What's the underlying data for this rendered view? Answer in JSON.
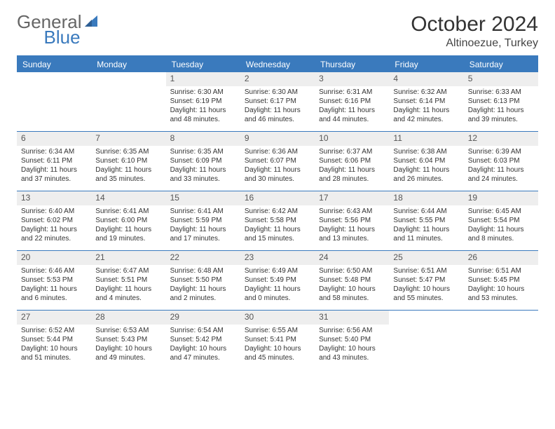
{
  "logo": {
    "text1": "General",
    "text2": "Blue"
  },
  "title": "October 2024",
  "subtitle": "Altinoezue, Turkey",
  "colors": {
    "accent": "#3a7abd",
    "daynum_bg": "#eeeeee",
    "text": "#333333",
    "background": "#ffffff"
  },
  "weekdays": [
    "Sunday",
    "Monday",
    "Tuesday",
    "Wednesday",
    "Thursday",
    "Friday",
    "Saturday"
  ],
  "weeks": [
    [
      {
        "n": "",
        "sr": "",
        "ss": "",
        "dl1": "",
        "dl2": ""
      },
      {
        "n": "",
        "sr": "",
        "ss": "",
        "dl1": "",
        "dl2": ""
      },
      {
        "n": "1",
        "sr": "Sunrise: 6:30 AM",
        "ss": "Sunset: 6:19 PM",
        "dl1": "Daylight: 11 hours",
        "dl2": "and 48 minutes."
      },
      {
        "n": "2",
        "sr": "Sunrise: 6:30 AM",
        "ss": "Sunset: 6:17 PM",
        "dl1": "Daylight: 11 hours",
        "dl2": "and 46 minutes."
      },
      {
        "n": "3",
        "sr": "Sunrise: 6:31 AM",
        "ss": "Sunset: 6:16 PM",
        "dl1": "Daylight: 11 hours",
        "dl2": "and 44 minutes."
      },
      {
        "n": "4",
        "sr": "Sunrise: 6:32 AM",
        "ss": "Sunset: 6:14 PM",
        "dl1": "Daylight: 11 hours",
        "dl2": "and 42 minutes."
      },
      {
        "n": "5",
        "sr": "Sunrise: 6:33 AM",
        "ss": "Sunset: 6:13 PM",
        "dl1": "Daylight: 11 hours",
        "dl2": "and 39 minutes."
      }
    ],
    [
      {
        "n": "6",
        "sr": "Sunrise: 6:34 AM",
        "ss": "Sunset: 6:11 PM",
        "dl1": "Daylight: 11 hours",
        "dl2": "and 37 minutes."
      },
      {
        "n": "7",
        "sr": "Sunrise: 6:35 AM",
        "ss": "Sunset: 6:10 PM",
        "dl1": "Daylight: 11 hours",
        "dl2": "and 35 minutes."
      },
      {
        "n": "8",
        "sr": "Sunrise: 6:35 AM",
        "ss": "Sunset: 6:09 PM",
        "dl1": "Daylight: 11 hours",
        "dl2": "and 33 minutes."
      },
      {
        "n": "9",
        "sr": "Sunrise: 6:36 AM",
        "ss": "Sunset: 6:07 PM",
        "dl1": "Daylight: 11 hours",
        "dl2": "and 30 minutes."
      },
      {
        "n": "10",
        "sr": "Sunrise: 6:37 AM",
        "ss": "Sunset: 6:06 PM",
        "dl1": "Daylight: 11 hours",
        "dl2": "and 28 minutes."
      },
      {
        "n": "11",
        "sr": "Sunrise: 6:38 AM",
        "ss": "Sunset: 6:04 PM",
        "dl1": "Daylight: 11 hours",
        "dl2": "and 26 minutes."
      },
      {
        "n": "12",
        "sr": "Sunrise: 6:39 AM",
        "ss": "Sunset: 6:03 PM",
        "dl1": "Daylight: 11 hours",
        "dl2": "and 24 minutes."
      }
    ],
    [
      {
        "n": "13",
        "sr": "Sunrise: 6:40 AM",
        "ss": "Sunset: 6:02 PM",
        "dl1": "Daylight: 11 hours",
        "dl2": "and 22 minutes."
      },
      {
        "n": "14",
        "sr": "Sunrise: 6:41 AM",
        "ss": "Sunset: 6:00 PM",
        "dl1": "Daylight: 11 hours",
        "dl2": "and 19 minutes."
      },
      {
        "n": "15",
        "sr": "Sunrise: 6:41 AM",
        "ss": "Sunset: 5:59 PM",
        "dl1": "Daylight: 11 hours",
        "dl2": "and 17 minutes."
      },
      {
        "n": "16",
        "sr": "Sunrise: 6:42 AM",
        "ss": "Sunset: 5:58 PM",
        "dl1": "Daylight: 11 hours",
        "dl2": "and 15 minutes."
      },
      {
        "n": "17",
        "sr": "Sunrise: 6:43 AM",
        "ss": "Sunset: 5:56 PM",
        "dl1": "Daylight: 11 hours",
        "dl2": "and 13 minutes."
      },
      {
        "n": "18",
        "sr": "Sunrise: 6:44 AM",
        "ss": "Sunset: 5:55 PM",
        "dl1": "Daylight: 11 hours",
        "dl2": "and 11 minutes."
      },
      {
        "n": "19",
        "sr": "Sunrise: 6:45 AM",
        "ss": "Sunset: 5:54 PM",
        "dl1": "Daylight: 11 hours",
        "dl2": "and 8 minutes."
      }
    ],
    [
      {
        "n": "20",
        "sr": "Sunrise: 6:46 AM",
        "ss": "Sunset: 5:53 PM",
        "dl1": "Daylight: 11 hours",
        "dl2": "and 6 minutes."
      },
      {
        "n": "21",
        "sr": "Sunrise: 6:47 AM",
        "ss": "Sunset: 5:51 PM",
        "dl1": "Daylight: 11 hours",
        "dl2": "and 4 minutes."
      },
      {
        "n": "22",
        "sr": "Sunrise: 6:48 AM",
        "ss": "Sunset: 5:50 PM",
        "dl1": "Daylight: 11 hours",
        "dl2": "and 2 minutes."
      },
      {
        "n": "23",
        "sr": "Sunrise: 6:49 AM",
        "ss": "Sunset: 5:49 PM",
        "dl1": "Daylight: 11 hours",
        "dl2": "and 0 minutes."
      },
      {
        "n": "24",
        "sr": "Sunrise: 6:50 AM",
        "ss": "Sunset: 5:48 PM",
        "dl1": "Daylight: 10 hours",
        "dl2": "and 58 minutes."
      },
      {
        "n": "25",
        "sr": "Sunrise: 6:51 AM",
        "ss": "Sunset: 5:47 PM",
        "dl1": "Daylight: 10 hours",
        "dl2": "and 55 minutes."
      },
      {
        "n": "26",
        "sr": "Sunrise: 6:51 AM",
        "ss": "Sunset: 5:45 PM",
        "dl1": "Daylight: 10 hours",
        "dl2": "and 53 minutes."
      }
    ],
    [
      {
        "n": "27",
        "sr": "Sunrise: 6:52 AM",
        "ss": "Sunset: 5:44 PM",
        "dl1": "Daylight: 10 hours",
        "dl2": "and 51 minutes."
      },
      {
        "n": "28",
        "sr": "Sunrise: 6:53 AM",
        "ss": "Sunset: 5:43 PM",
        "dl1": "Daylight: 10 hours",
        "dl2": "and 49 minutes."
      },
      {
        "n": "29",
        "sr": "Sunrise: 6:54 AM",
        "ss": "Sunset: 5:42 PM",
        "dl1": "Daylight: 10 hours",
        "dl2": "and 47 minutes."
      },
      {
        "n": "30",
        "sr": "Sunrise: 6:55 AM",
        "ss": "Sunset: 5:41 PM",
        "dl1": "Daylight: 10 hours",
        "dl2": "and 45 minutes."
      },
      {
        "n": "31",
        "sr": "Sunrise: 6:56 AM",
        "ss": "Sunset: 5:40 PM",
        "dl1": "Daylight: 10 hours",
        "dl2": "and 43 minutes."
      },
      {
        "n": "",
        "sr": "",
        "ss": "",
        "dl1": "",
        "dl2": ""
      },
      {
        "n": "",
        "sr": "",
        "ss": "",
        "dl1": "",
        "dl2": ""
      }
    ]
  ]
}
